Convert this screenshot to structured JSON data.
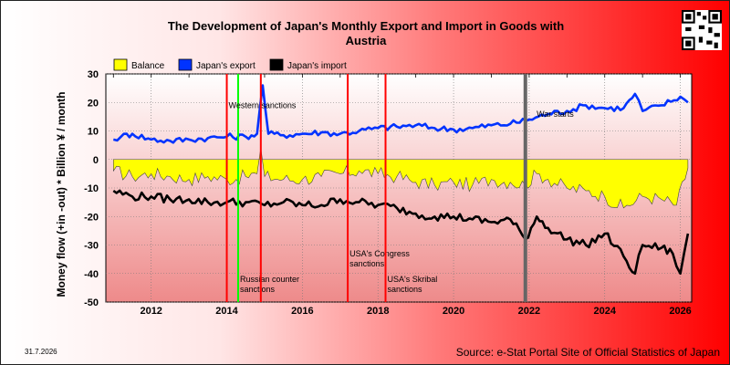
{
  "page": {
    "title_line1": "The Development of Japan's Monthly Export and Import in Goods with",
    "title_line2": "Austria",
    "ylabel": "Money flow (+in -out) * Billion ¥ / month",
    "source": "Source: e-Stat Portal Site of Official Statistics of Japan",
    "stamp": "31.7.2026"
  },
  "chart_data": {
    "type": "line",
    "title": "The Development of Japan's Monthly Export and Import in Goods with Austria",
    "xlabel": "",
    "ylabel": "Money flow (+in -out) * Billion ¥ / month",
    "xlim": [
      2010.8,
      2026.3
    ],
    "ylim": [
      -50,
      30
    ],
    "yticks": [
      30,
      20,
      10,
      0,
      -10,
      -20,
      -30,
      -40,
      -50
    ],
    "xticks": [
      2012,
      2014,
      2016,
      2018,
      2020,
      2022,
      2024,
      2026
    ],
    "grid": true,
    "legend_position": "top-left",
    "series": [
      {
        "name": "Balance",
        "color": "#ffff00",
        "style": "area",
        "x": [
          2011.0,
          2011.5,
          2012.0,
          2012.5,
          2013.0,
          2013.5,
          2014.0,
          2014.5,
          2014.8,
          2014.9,
          2015.0,
          2015.5,
          2016.0,
          2016.5,
          2017.0,
          2017.5,
          2018.0,
          2018.5,
          2019.0,
          2019.5,
          2020.0,
          2020.5,
          2021.0,
          2021.5,
          2021.9,
          2022.2,
          2022.5,
          2023.0,
          2023.5,
          2024.0,
          2024.5,
          2025.0,
          2025.5,
          2025.9,
          2026.2
        ],
        "values": [
          -4,
          -6,
          -5,
          -6,
          -7,
          -6,
          -7,
          -6,
          -5,
          4,
          -6,
          -7,
          -7,
          -6,
          -5,
          -4,
          -5,
          -6,
          -8,
          -9,
          -8,
          -9,
          -7,
          -8,
          -9,
          -5,
          -7,
          -10,
          -11,
          -13,
          -17,
          -13,
          -14,
          -16,
          -3
        ]
      },
      {
        "name": "Japan's export",
        "color": "#0033ff",
        "style": "line",
        "x": [
          2011.0,
          2011.2,
          2011.5,
          2012.0,
          2012.5,
          2013.0,
          2013.5,
          2014.0,
          2014.5,
          2014.8,
          2014.95,
          2015.1,
          2015.5,
          2016.0,
          2016.5,
          2017.0,
          2017.5,
          2018.0,
          2018.5,
          2019.0,
          2019.5,
          2020.0,
          2020.5,
          2021.0,
          2021.5,
          2022.0,
          2022.5,
          2023.0,
          2023.5,
          2024.0,
          2024.5,
          2024.8,
          2025.0,
          2025.5,
          2026.0,
          2026.2
        ],
        "values": [
          7,
          8,
          9,
          7,
          6.5,
          7,
          7.5,
          8,
          8,
          9,
          26,
          9,
          8.5,
          9,
          9.5,
          9,
          10,
          11,
          11.5,
          12,
          11,
          10.5,
          11,
          12,
          12.5,
          14,
          16,
          17,
          19,
          18,
          18,
          23,
          17,
          19,
          22,
          20
        ]
      },
      {
        "name": "Japan's import",
        "color": "#000000",
        "style": "line",
        "x": [
          2011.0,
          2011.5,
          2012.0,
          2012.5,
          2013.0,
          2013.5,
          2014.0,
          2014.5,
          2015.0,
          2015.5,
          2016.0,
          2016.5,
          2017.0,
          2017.5,
          2018.0,
          2018.5,
          2019.0,
          2019.5,
          2020.0,
          2020.5,
          2021.0,
          2021.5,
          2021.9,
          2022.2,
          2022.5,
          2023.0,
          2023.5,
          2024.0,
          2024.5,
          2024.8,
          2025.0,
          2025.5,
          2025.8,
          2026.0,
          2026.2
        ],
        "values": [
          -11,
          -13,
          -13,
          -14,
          -14,
          -15,
          -15,
          -15,
          -16,
          -15,
          -16,
          -16,
          -14,
          -15,
          -16,
          -17,
          -19,
          -20,
          -20,
          -21,
          -22,
          -21,
          -28,
          -20,
          -24,
          -28,
          -30,
          -26,
          -34,
          -40,
          -30,
          -31,
          -33,
          -40,
          -26
        ]
      }
    ],
    "annotations": [
      {
        "x": 2014.0,
        "color": "#ff0000",
        "label": ""
      },
      {
        "x": 2014.3,
        "color": "#00ff00",
        "label": "Russian counter sanctions"
      },
      {
        "x": 2014.9,
        "color": "#ff0000",
        "label": "Western sanctions"
      },
      {
        "x": 2017.2,
        "color": "#ff0000",
        "label": "USA's Congress sanctions"
      },
      {
        "x": 2018.2,
        "color": "#ff0000",
        "label": "USA's Skribal sanctions"
      },
      {
        "x": 2021.9,
        "color": "#666666",
        "label": ""
      },
      {
        "x": 2022.15,
        "color": "",
        "label": "War starts"
      }
    ]
  }
}
